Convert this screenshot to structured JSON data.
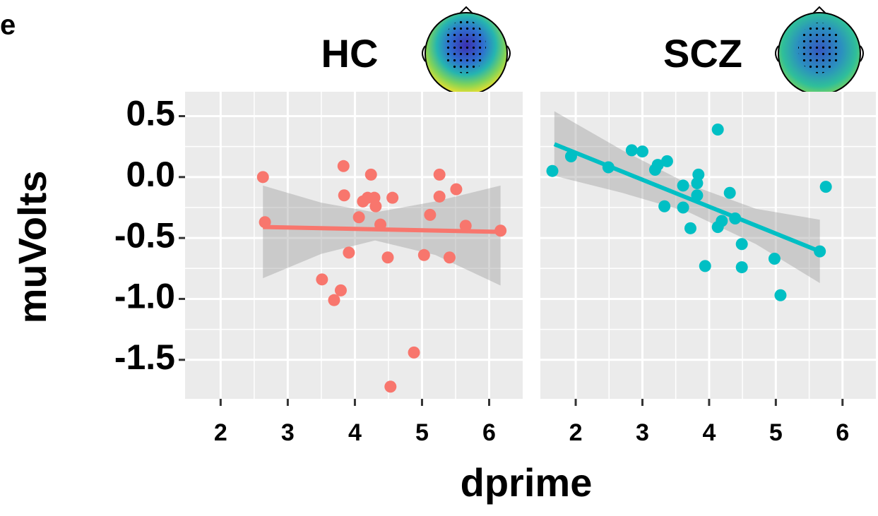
{
  "panel_label": "e",
  "xlabel": "dprime",
  "ylabel": "muVolts",
  "chart_data": [
    {
      "type": "scatter",
      "title": "HC",
      "color": "#f8766d",
      "x": [
        2.63,
        2.66,
        3.83,
        3.84,
        4.24,
        4.12,
        4.19,
        4.29,
        4.31,
        4.56,
        4.06,
        4.38,
        3.91,
        4.49,
        3.51,
        3.79,
        3.69,
        4.88,
        4.53,
        5.26,
        5.26,
        5.51,
        5.12,
        5.65,
        5.03,
        5.41,
        6.17
      ],
      "values": [
        0.0,
        -0.37,
        0.09,
        -0.15,
        0.02,
        -0.2,
        -0.17,
        -0.17,
        -0.24,
        -0.17,
        -0.33,
        -0.39,
        -0.62,
        -0.66,
        -0.84,
        -0.93,
        -1.01,
        -1.44,
        -1.72,
        0.02,
        -0.16,
        -0.1,
        -0.31,
        -0.4,
        -0.64,
        -0.66,
        -0.44
      ],
      "fit": {
        "x": [
          2.63,
          6.17
        ],
        "values": [
          -0.41,
          -0.45
        ]
      },
      "band": {
        "x": [
          2.63,
          3.5,
          4.3,
          5.2,
          6.17
        ],
        "upper": [
          -0.07,
          -0.21,
          -0.29,
          -0.2,
          -0.07
        ],
        "lower": [
          -0.83,
          -0.63,
          -0.52,
          -0.64,
          -0.89
        ]
      },
      "xlim": [
        1.47,
        6.5
      ],
      "xticks": [
        2,
        3,
        4,
        5,
        6
      ],
      "ylim": [
        -1.82,
        0.7
      ],
      "yticks": [
        0.5,
        {
          "value": 0,
          "label": "0.0"
        },
        -0.5,
        {
          "value": -1,
          "label": "-1.0"
        },
        -1.5
      ],
      "grid": true
    },
    {
      "type": "scatter",
      "title": "SCZ",
      "color": "#00bfc4",
      "x": [
        1.65,
        1.93,
        2.49,
        2.84,
        3.0,
        3.19,
        3.23,
        3.37,
        3.33,
        3.61,
        3.61,
        3.72,
        3.84,
        3.82,
        3.82,
        4.13,
        4.31,
        4.13,
        4.19,
        4.39,
        3.94,
        4.49,
        4.49,
        4.98,
        5.07,
        5.66,
        5.75
      ],
      "values": [
        0.05,
        0.17,
        0.08,
        0.22,
        0.21,
        0.06,
        0.1,
        0.13,
        -0.24,
        -0.07,
        -0.25,
        -0.42,
        0.02,
        -0.05,
        -0.15,
        0.39,
        -0.13,
        -0.41,
        -0.36,
        -0.34,
        -0.73,
        -0.55,
        -0.74,
        -0.67,
        -0.97,
        -0.61,
        -0.08
      ],
      "fit": {
        "x": [
          1.68,
          5.66
        ],
        "values": [
          0.27,
          -0.61
        ]
      },
      "band": {
        "x": [
          1.68,
          2.7,
          3.7,
          4.7,
          5.66
        ],
        "upper": [
          0.54,
          0.22,
          -0.06,
          -0.26,
          -0.35
        ],
        "lower": [
          0.01,
          -0.13,
          -0.29,
          -0.55,
          -0.87
        ]
      },
      "xlim": [
        1.47,
        6.5
      ],
      "xticks": [
        2,
        3,
        4,
        5,
        6
      ],
      "ylim": [
        -1.82,
        0.7
      ],
      "yticks": [
        0.5,
        0,
        -0.5,
        -1,
        -1.5
      ],
      "grid": true
    }
  ]
}
